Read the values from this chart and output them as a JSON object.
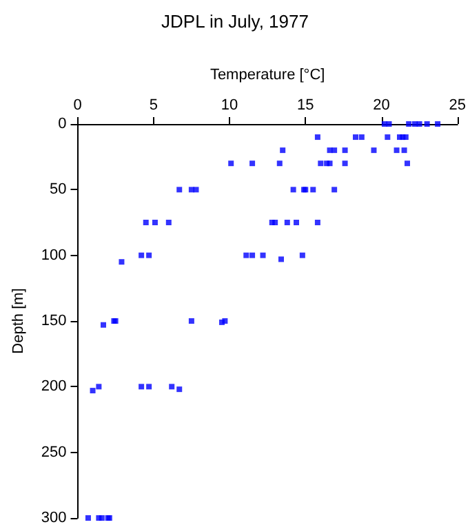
{
  "chart_data": {
    "type": "scatter",
    "title": "JDPL in July, 1977",
    "xlabel": "Temperature [°C]",
    "ylabel": "Depth [m]",
    "series": [
      {
        "color": "#0000ff",
        "x": [
          20.2,
          20.5,
          21.8,
          22.2,
          22.5,
          23.0,
          23.7,
          15.8,
          18.3,
          18.7,
          20.4,
          21.2,
          21.4,
          21.6,
          13.5,
          16.6,
          16.9,
          17.6,
          19.5,
          21.0,
          21.5,
          10.1,
          11.5,
          13.3,
          16.0,
          16.4,
          16.6,
          17.6,
          21.7,
          6.7,
          7.5,
          7.8,
          14.2,
          14.9,
          15.0,
          15.5,
          16.9,
          4.5,
          5.1,
          6.0,
          12.8,
          13.0,
          13.8,
          14.4,
          15.8,
          4.2,
          4.7,
          11.1,
          11.5,
          12.2,
          14.8,
          2.9,
          13.4,
          2.4,
          2.5,
          7.5,
          9.7,
          9.5,
          1.7,
          1.4,
          4.2,
          4.7,
          6.2,
          1.0,
          6.7,
          0.7,
          1.4,
          1.6,
          2.0,
          2.1
        ],
        "values": [
          0,
          0,
          0,
          0,
          0,
          0,
          0,
          10,
          10,
          10,
          10,
          10,
          10,
          10,
          20,
          20,
          20,
          20,
          20,
          20,
          20,
          30,
          30,
          30,
          30,
          30,
          30,
          30,
          30,
          50,
          50,
          50,
          50,
          50,
          50,
          50,
          50,
          75,
          75,
          75,
          75,
          75,
          75,
          75,
          75,
          100,
          100,
          100,
          100,
          100,
          100,
          105,
          103,
          150,
          150,
          150,
          150,
          151,
          153,
          200,
          200,
          200,
          200,
          203,
          202,
          300,
          300,
          300,
          300,
          300
        ]
      }
    ],
    "xlim": [
      0,
      25
    ],
    "xticks": [
      0,
      5,
      10,
      15,
      20,
      25
    ],
    "ylim": [
      300,
      0
    ],
    "yticks": [
      0,
      50,
      100,
      150,
      200,
      250,
      300
    ],
    "marker": "square",
    "grid": false
  }
}
